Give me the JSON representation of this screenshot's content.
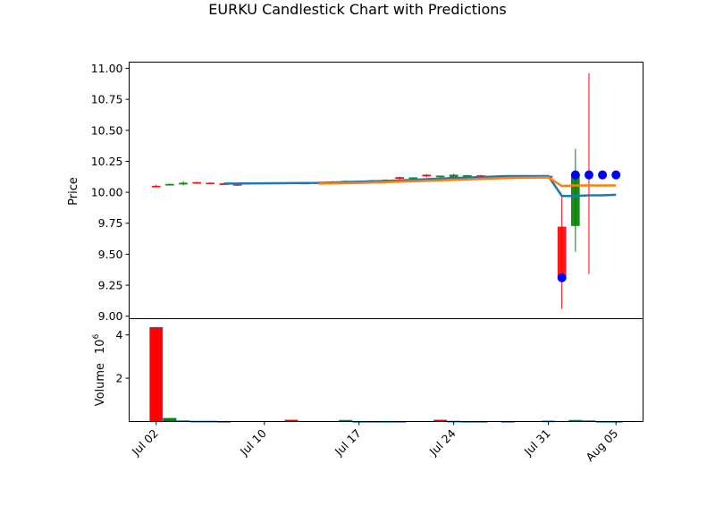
{
  "chart_data": {
    "type": "candlestick",
    "title": "EURKU Candlestick Chart with Predictions",
    "price_panel": {
      "ylabel": "Price",
      "ylim": [
        8.98,
        11.05
      ],
      "yticks": [
        "9.00",
        "9.25",
        "9.50",
        "9.75",
        "10.00",
        "10.25",
        "10.50",
        "10.75",
        "11.00"
      ],
      "candles": [
        {
          "date": "2023-07-02",
          "open": 10.05,
          "high": 10.06,
          "low": 10.04,
          "close": 10.05,
          "color": "red"
        },
        {
          "date": "2023-07-03",
          "open": 10.06,
          "high": 10.07,
          "low": 10.055,
          "close": 10.065,
          "color": "green"
        },
        {
          "date": "2023-07-04",
          "open": 10.065,
          "high": 10.09,
          "low": 10.055,
          "close": 10.075,
          "color": "green"
        },
        {
          "date": "2023-07-05",
          "open": 10.08,
          "high": 10.085,
          "low": 10.07,
          "close": 10.075,
          "color": "red"
        },
        {
          "date": "2023-07-06",
          "open": 10.075,
          "high": 10.08,
          "low": 10.07,
          "close": 10.07,
          "color": "red"
        },
        {
          "date": "2023-07-07",
          "open": 10.07,
          "high": 10.075,
          "low": 10.065,
          "close": 10.07,
          "color": "red"
        },
        {
          "date": "2023-07-08",
          "open": 10.065,
          "high": 10.07,
          "low": 10.05,
          "close": 10.055,
          "color": "red"
        },
        {
          "date": "2023-07-13",
          "open": 10.075,
          "high": 10.08,
          "low": 10.07,
          "close": 10.072,
          "color": "red"
        },
        {
          "date": "2023-07-14",
          "open": 10.074,
          "high": 10.085,
          "low": 10.07,
          "close": 10.08,
          "color": "green"
        },
        {
          "date": "2023-07-15",
          "open": 10.08,
          "high": 10.09,
          "low": 10.075,
          "close": 10.085,
          "color": "green"
        },
        {
          "date": "2023-07-16",
          "open": 10.085,
          "high": 10.095,
          "low": 10.08,
          "close": 10.09,
          "color": "green"
        },
        {
          "date": "2023-07-17",
          "open": 10.09,
          "high": 10.095,
          "low": 10.085,
          "close": 10.092,
          "color": "green"
        },
        {
          "date": "2023-07-18",
          "open": 10.095,
          "high": 10.1,
          "low": 10.085,
          "close": 10.09,
          "color": "red"
        },
        {
          "date": "2023-07-19",
          "open": 10.095,
          "high": 10.105,
          "low": 10.09,
          "close": 10.1,
          "color": "green"
        },
        {
          "date": "2023-07-20",
          "open": 10.12,
          "high": 10.125,
          "low": 10.105,
          "close": 10.11,
          "color": "red"
        },
        {
          "date": "2023-07-21",
          "open": 10.115,
          "high": 10.12,
          "low": 10.11,
          "close": 10.118,
          "color": "green"
        },
        {
          "date": "2023-07-22",
          "open": 10.14,
          "high": 10.145,
          "low": 10.12,
          "close": 10.13,
          "color": "red"
        },
        {
          "date": "2023-07-23",
          "open": 10.13,
          "high": 10.135,
          "low": 10.12,
          "close": 10.132,
          "color": "green"
        },
        {
          "date": "2023-07-24",
          "open": 10.12,
          "high": 10.15,
          "low": 10.115,
          "close": 10.14,
          "color": "green"
        },
        {
          "date": "2023-07-25",
          "open": 10.13,
          "high": 10.14,
          "low": 10.12,
          "close": 10.135,
          "color": "green"
        },
        {
          "date": "2023-07-26",
          "open": 10.135,
          "high": 10.14,
          "low": 10.125,
          "close": 10.13,
          "color": "red"
        },
        {
          "date": "2023-07-31",
          "open": 10.13,
          "high": 10.14,
          "low": 10.12,
          "close": 10.12,
          "color": "red"
        },
        {
          "date": "2023-08-01",
          "open": 9.72,
          "high": 9.97,
          "low": 9.06,
          "close": 9.31,
          "color": "red"
        },
        {
          "date": "2023-08-02",
          "open": 9.73,
          "high": 10.35,
          "low": 9.52,
          "close": 10.14,
          "color": "green"
        },
        {
          "date": "2023-08-03",
          "open": 10.06,
          "high": 10.96,
          "low": 9.34,
          "close": 10.055,
          "color": "red"
        }
      ],
      "predictions": [
        {
          "date": "2023-08-01",
          "value": 9.31
        },
        {
          "date": "2023-08-02",
          "value": 10.14
        },
        {
          "date": "2023-08-03",
          "value": 10.14
        },
        {
          "date": "2023-08-04",
          "value": 10.14
        },
        {
          "date": "2023-08-05",
          "value": 10.14
        }
      ],
      "lines": [
        {
          "color": "#1f77b4",
          "points": [
            [
              "2023-07-07",
              10.07
            ],
            [
              "2023-07-14",
              10.075
            ],
            [
              "2023-07-17",
              10.085
            ],
            [
              "2023-07-20",
              10.095
            ],
            [
              "2023-07-24",
              10.115
            ],
            [
              "2023-07-28",
              10.13
            ],
            [
              "2023-07-31",
              10.13
            ],
            [
              "2023-08-01",
              9.97
            ],
            [
              "2023-08-02",
              9.97
            ],
            [
              "2023-08-03",
              9.975
            ],
            [
              "2023-08-04",
              9.975
            ],
            [
              "2023-08-05",
              9.98
            ]
          ]
        },
        {
          "color": "#ff7f0e",
          "points": [
            [
              "2023-07-14",
              10.07
            ],
            [
              "2023-07-17",
              10.075
            ],
            [
              "2023-07-20",
              10.085
            ],
            [
              "2023-07-24",
              10.1
            ],
            [
              "2023-07-28",
              10.115
            ],
            [
              "2023-07-31",
              10.12
            ],
            [
              "2023-08-01",
              10.05
            ],
            [
              "2023-08-02",
              10.055
            ],
            [
              "2023-08-03",
              10.055
            ],
            [
              "2023-08-04",
              10.055
            ],
            [
              "2023-08-05",
              10.055
            ]
          ]
        }
      ]
    },
    "volume_panel": {
      "ylabel": "Volume",
      "multiplier_label": "10",
      "multiplier_exp": "6",
      "ylim": [
        0,
        4.75
      ],
      "yticks": [
        "2",
        "4"
      ],
      "bars": [
        {
          "date": "2023-07-02",
          "value": 4.35,
          "color": "red"
        },
        {
          "date": "2023-07-03",
          "value": 0.15,
          "color": "green"
        },
        {
          "date": "2023-07-04",
          "value": 0.04,
          "color": "green"
        },
        {
          "date": "2023-07-05",
          "value": 0.02,
          "color": "red"
        },
        {
          "date": "2023-07-06",
          "value": 0.02,
          "color": "red"
        },
        {
          "date": "2023-07-07",
          "value": 0.01,
          "color": "red"
        },
        {
          "date": "2023-07-12",
          "value": 0.07,
          "color": "red"
        },
        {
          "date": "2023-07-16",
          "value": 0.06,
          "color": "green"
        },
        {
          "date": "2023-07-17",
          "value": 0.01,
          "color": "green"
        },
        {
          "date": "2023-07-18",
          "value": 0.01,
          "color": "red"
        },
        {
          "date": "2023-07-19",
          "value": 0.01,
          "color": "green"
        },
        {
          "date": "2023-07-20",
          "value": 0.01,
          "color": "red"
        },
        {
          "date": "2023-07-23",
          "value": 0.07,
          "color": "red"
        },
        {
          "date": "2023-07-24",
          "value": 0.02,
          "color": "green"
        },
        {
          "date": "2023-07-25",
          "value": 0.01,
          "color": "green"
        },
        {
          "date": "2023-07-26",
          "value": 0.01,
          "color": "red"
        },
        {
          "date": "2023-07-28",
          "value": 0.01,
          "color": "red"
        },
        {
          "date": "2023-07-31",
          "value": 0.03,
          "color": "red"
        },
        {
          "date": "2023-08-02",
          "value": 0.06,
          "color": "green"
        },
        {
          "date": "2023-08-03",
          "value": 0.04,
          "color": "red"
        },
        {
          "date": "2023-08-04",
          "value": 0.01,
          "color": "green"
        },
        {
          "date": "2023-08-05",
          "value": 0.01,
          "color": "green"
        }
      ]
    },
    "x_axis": {
      "ticks": [
        {
          "date": "2023-07-02",
          "label": "Jul 02"
        },
        {
          "date": "2023-07-10",
          "label": "Jul 10"
        },
        {
          "date": "2023-07-17",
          "label": "Jul 17"
        },
        {
          "date": "2023-07-24",
          "label": "Jul 24"
        },
        {
          "date": "2023-07-31",
          "label": "Jul 31"
        },
        {
          "date": "2023-08-05",
          "label": "Aug 05"
        }
      ],
      "range": [
        "2023-06-30",
        "2023-08-07"
      ]
    },
    "colors": {
      "up": "#008000",
      "down": "#ff0000",
      "prediction": "#0000ff"
    }
  }
}
